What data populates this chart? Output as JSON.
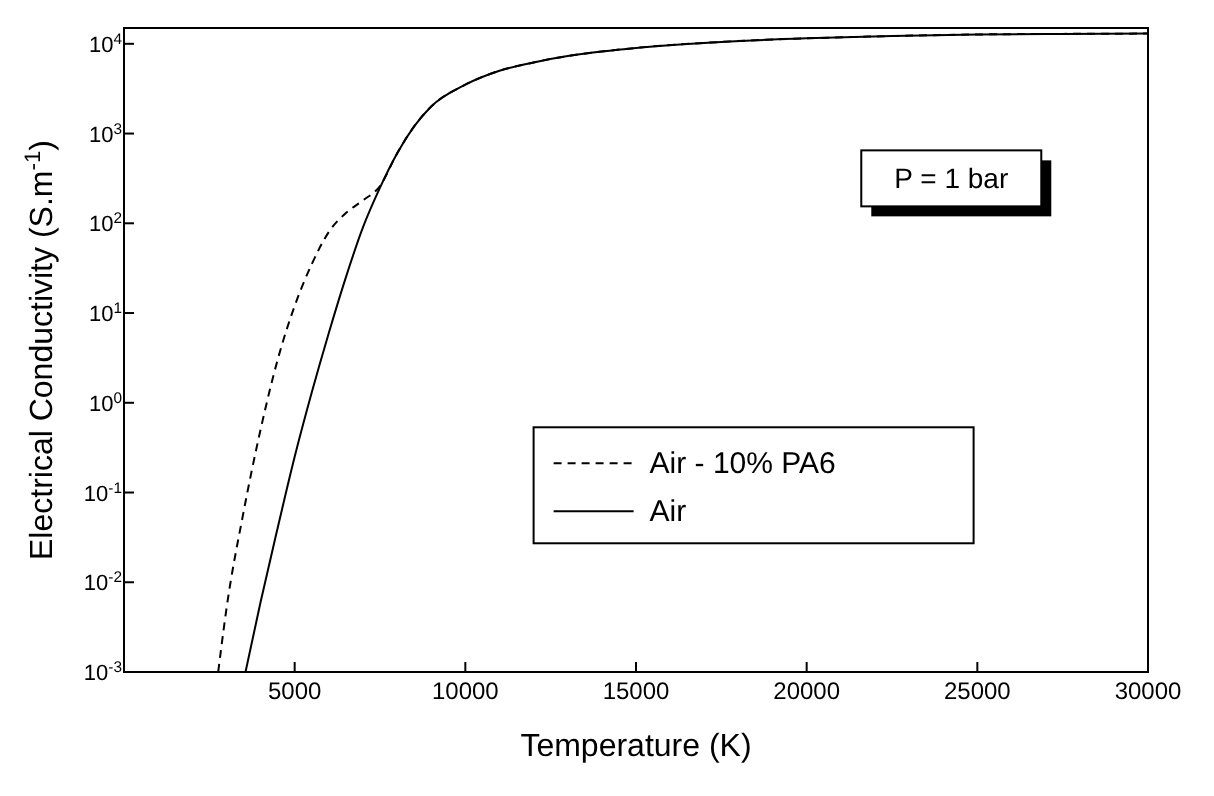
{
  "chart_data": {
    "type": "line",
    "xlabel": "Temperature (K)",
    "ylabel": "Electrical Conductivity (S.m$^{-1}$)",
    "log": "y",
    "xlim": [
      0,
      30000
    ],
    "xticks": [
      5000,
      10000,
      15000,
      20000,
      25000,
      30000
    ],
    "ylim": [
      0.001,
      15000
    ],
    "yticks": [
      {
        "value": 0.001,
        "label": "10$^{-3}$"
      },
      {
        "value": 0.01,
        "label": "10$^{-2}$"
      },
      {
        "value": 0.1,
        "label": "10$^{-1}$"
      },
      {
        "value": 1,
        "label": "10$^{0}$"
      },
      {
        "value": 10,
        "label": "10$^{1}$"
      },
      {
        "value": 100,
        "label": "10$^{2}$"
      },
      {
        "value": 1000,
        "label": "10$^{3}$"
      },
      {
        "value": 10000,
        "label": "10$^{4}$"
      }
    ],
    "grid": false,
    "legend": "bottom right",
    "marker": "none",
    "annotations": [
      "P = 1 bar"
    ],
    "series": [
      {
        "name": "Air - 10% PA6",
        "color": "#000000",
        "line_style": "dashed",
        "x": [
          2760,
          3000,
          3500,
          4000,
          4500,
          5000,
          5500,
          6000,
          6500,
          7000,
          7500,
          8000,
          8500,
          9000,
          10000,
          11000,
          12000,
          13000,
          14000,
          15000,
          17500,
          20000,
          22500,
          25000,
          27500,
          30000
        ],
        "values": [
          0.001,
          0.005,
          0.06,
          0.5,
          3,
          12,
          35,
          80,
          130,
          180,
          260,
          600,
          1200,
          2000,
          3500,
          5000,
          6200,
          7300,
          8200,
          9000,
          10500,
          11500,
          12200,
          12700,
          12900,
          13000
        ]
      },
      {
        "name": "Air",
        "color": "#000000",
        "line_style": "solid",
        "x": [
          3560,
          4000,
          4500,
          5000,
          5500,
          6000,
          6500,
          7000,
          7500,
          8000,
          8500,
          9000,
          10000,
          11000,
          12000,
          13000,
          14000,
          15000,
          17500,
          20000,
          22500,
          25000,
          27500,
          30000
        ],
        "values": [
          0.001,
          0.006,
          0.04,
          0.25,
          1.3,
          6,
          25,
          90,
          250,
          600,
          1200,
          2000,
          3500,
          5000,
          6200,
          7300,
          8200,
          9000,
          10500,
          11500,
          12200,
          12700,
          12900,
          13000
        ]
      }
    ]
  }
}
